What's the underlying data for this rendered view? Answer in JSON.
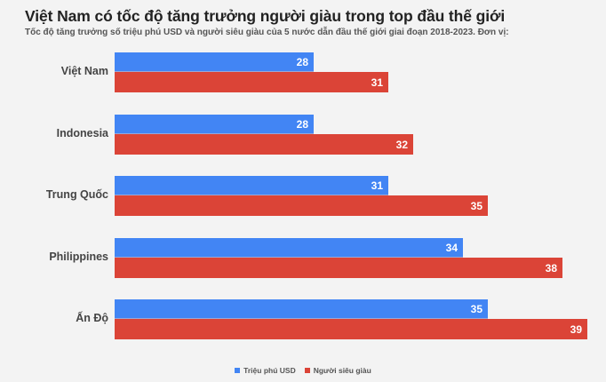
{
  "header": {
    "title": "Việt Nam có tốc độ tăng trưởng người giàu trong top đầu thế giới",
    "subtitle": "Tốc độ tăng trưởng số triệu phú USD và người siêu giàu của 5 nước dẫn đầu thế giới giai đoạn 2018-2023. Đơn vị:"
  },
  "legend": [
    {
      "label": "Triệu phú USD",
      "color": "#4285f4"
    },
    {
      "label": "Người siêu giàu",
      "color": "#db4437"
    }
  ],
  "chart_data": {
    "type": "bar",
    "orientation": "horizontal",
    "title": "Việt Nam có tốc độ tăng trưởng người giàu trong top đầu thế giới",
    "subtitle": "Tốc độ tăng trưởng số triệu phú USD và người siêu giàu của 5 nước dẫn đầu thế giới giai đoạn 2018-2023. Đơn vị:",
    "categories": [
      "Việt Nam",
      "Indonesia",
      "Trung Quốc",
      "Philippines",
      "Ấn Độ"
    ],
    "series": [
      {
        "name": "Triệu phú USD",
        "color": "#4285f4",
        "values": [
          28,
          28,
          31,
          34,
          35
        ]
      },
      {
        "name": "Người siêu giàu",
        "color": "#db4437",
        "values": [
          31,
          32,
          35,
          38,
          39
        ]
      }
    ],
    "xlabel": "",
    "ylabel": "",
    "xlim": [
      20,
      40
    ],
    "grid": false,
    "data_labels": true,
    "legend_position": "bottom"
  }
}
